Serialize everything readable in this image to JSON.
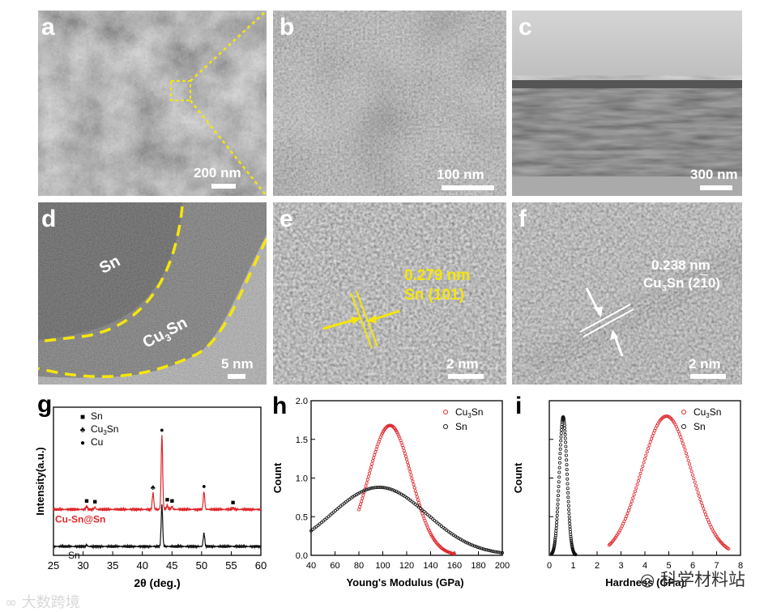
{
  "panels": {
    "a": {
      "label": "a",
      "scale": "200 nm"
    },
    "b": {
      "label": "b",
      "scale": "100 nm"
    },
    "c": {
      "label": "c",
      "scale": "300 nm"
    },
    "d": {
      "label": "d",
      "scale": "5 nm",
      "region_outer": "Sn",
      "region_inner": "Cu",
      "region_inner_sub": "3",
      "region_inner_tail": "Sn"
    },
    "e": {
      "label": "e",
      "scale": "2 nm",
      "d_spacing": "0.279 nm",
      "plane": "Sn (101)"
    },
    "f": {
      "label": "f",
      "scale": "2 nm",
      "d_spacing": "0.238 nm",
      "phase": "Cu",
      "phase_sub": "3",
      "phase_tail": "Sn (2",
      "plane_bar": "1",
      "plane_end": "0)"
    },
    "g": {
      "label": "g"
    },
    "h": {
      "label": "h"
    },
    "i": {
      "label": "i"
    }
  },
  "colors": {
    "yellow": "#f5e60a",
    "red": "#e0262b",
    "black": "#111111"
  },
  "watermark": {
    "left": "大数跨境",
    "right": "科学材料站"
  },
  "chart_data": [
    {
      "type": "line",
      "panel": "g",
      "xlabel": "2θ (deg.)",
      "ylabel": "Intensity(a.u.)",
      "xlim": [
        25,
        60
      ],
      "xticks": [
        "25",
        "30",
        "35",
        "40",
        "45",
        "50",
        "55",
        "60"
      ],
      "legend": [
        {
          "marker": "■",
          "label": "Sn"
        },
        {
          "marker": "♣",
          "label": "Cu",
          "sub": "3",
          "tail": "Sn"
        },
        {
          "marker": "●",
          "label": "Cu"
        }
      ],
      "series": [
        {
          "name": "Cu-Sn@Sn",
          "color": "#e0262b",
          "baseline": 0.31,
          "peaks": [
            [
              30.6,
              0.02
            ],
            [
              32.0,
              0.015
            ],
            [
              41.8,
              0.11
            ],
            [
              43.3,
              0.5
            ],
            [
              44.2,
              0.03
            ],
            [
              45.0,
              0.02
            ],
            [
              50.4,
              0.12
            ],
            [
              55.3,
              0.01
            ]
          ],
          "markers": [
            [
              30.6,
              "■"
            ],
            [
              32.0,
              "■"
            ],
            [
              41.8,
              "♣"
            ],
            [
              43.3,
              "●"
            ],
            [
              44.2,
              "■"
            ],
            [
              45.0,
              "■"
            ],
            [
              50.4,
              "●"
            ],
            [
              55.3,
              "■"
            ]
          ]
        },
        {
          "name": "Sn",
          "color": "#111111",
          "baseline": 0.06,
          "peaks": [
            [
              30.6,
              0.01
            ],
            [
              43.3,
              0.28
            ],
            [
              50.4,
              0.09
            ]
          ]
        }
      ]
    },
    {
      "type": "scatter",
      "panel": "h",
      "xlabel": "Young's Modulus (GPa)",
      "ylabel": "Count",
      "xlim": [
        40,
        200
      ],
      "ylim": [
        0,
        2.0
      ],
      "xticks": [
        "40",
        "60",
        "80",
        "100",
        "120",
        "140",
        "160",
        "180",
        "200"
      ],
      "yticks": [
        "0.0",
        "0.5",
        "1.0",
        "1.5",
        "2.0"
      ],
      "legend_position": "top-right",
      "series": [
        {
          "name": "Cu",
          "sub": "3",
          "tail": "Sn",
          "color": "#e0262b",
          "x_range": [
            80,
            160
          ],
          "peak_x": 106,
          "peak_y": 1.68,
          "sigma": 18
        },
        {
          "name": "Sn",
          "color": "#111111",
          "x_range": [
            40,
            200
          ],
          "peak_x": 97,
          "peak_y": 0.88,
          "sigma": 40
        }
      ]
    },
    {
      "type": "scatter",
      "panel": "i",
      "xlabel": "Hardness (GPa)",
      "ylabel": "Count",
      "xlim": [
        0,
        8
      ],
      "ylim": [
        0,
        2.0
      ],
      "xticks": [
        "0",
        "1",
        "2",
        "3",
        "4",
        "5",
        "6",
        "7",
        "8"
      ],
      "legend_position": "top-right",
      "series": [
        {
          "name": "Cu",
          "sub": "3",
          "tail": "Sn",
          "color": "#e0262b",
          "x_range": [
            2.5,
            7.5
          ],
          "peak_x": 4.9,
          "peak_y": 1.8,
          "sigma": 1.05
        },
        {
          "name": "Sn",
          "color": "#111111",
          "x_range": [
            0.1,
            1.1
          ],
          "peak_x": 0.58,
          "peak_y": 1.79,
          "sigma": 0.16
        }
      ]
    }
  ]
}
